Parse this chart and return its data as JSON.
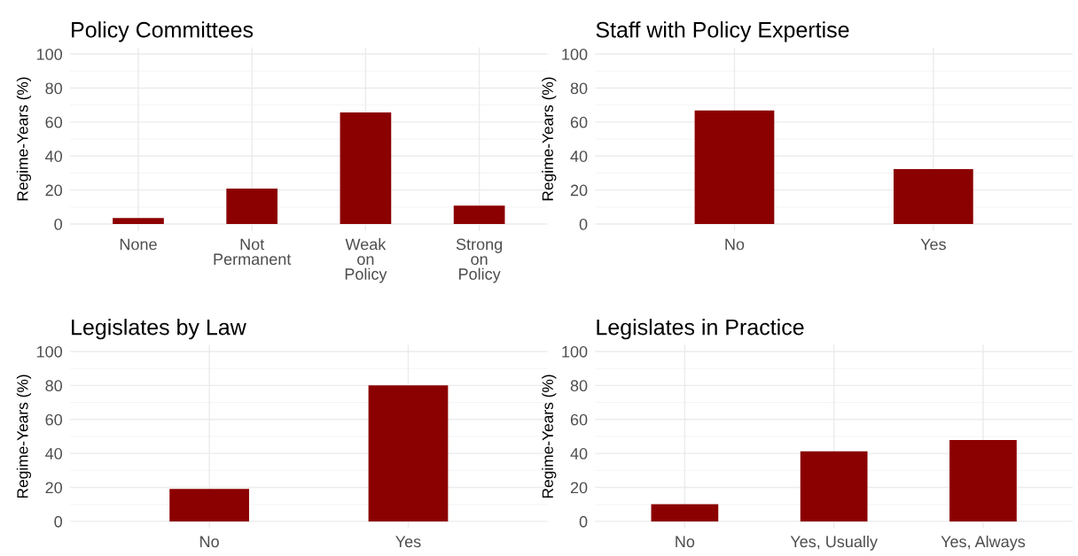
{
  "chart_data": [
    {
      "type": "bar",
      "title": "Policy Committees",
      "ylabel": "Regime-Years (%)",
      "categories": [
        "None",
        "Not\nPermanent",
        "Weak\non\nPolicy",
        "Strong\non\nPolicy"
      ],
      "values": [
        3.6,
        20.9,
        65.6,
        10.8
      ],
      "color": "#8b0000",
      "ylim": [
        -4,
        104
      ],
      "yticks": [
        0,
        20,
        40,
        60,
        80,
        100
      ],
      "grid": true
    },
    {
      "type": "bar",
      "title": "Staff with Policy Expertise",
      "ylabel": "Regime-Years (%)",
      "categories": [
        "No",
        "Yes"
      ],
      "values": [
        66.8,
        32.3
      ],
      "color": "#8b0000",
      "ylim": [
        -4,
        104
      ],
      "yticks": [
        0,
        20,
        40,
        60,
        80,
        100
      ],
      "grid": true
    },
    {
      "type": "bar",
      "title": "Legislates by Law",
      "ylabel": "Regime-Years (%)",
      "categories": [
        "No",
        "Yes"
      ],
      "values": [
        19.1,
        80
      ],
      "color": "#8b0000",
      "ylim": [
        -4,
        104
      ],
      "yticks": [
        0,
        20,
        40,
        60,
        80,
        100
      ],
      "grid": true
    },
    {
      "type": "bar",
      "title": "Legislates in Practice",
      "ylabel": "Regime-Years (%)",
      "categories": [
        "No",
        "Yes, Usually",
        "Yes, Always"
      ],
      "values": [
        10.1,
        41.3,
        47.9
      ],
      "color": "#8b0000",
      "ylim": [
        -4,
        104
      ],
      "yticks": [
        0,
        20,
        40,
        60,
        80,
        100
      ],
      "grid": true
    }
  ]
}
